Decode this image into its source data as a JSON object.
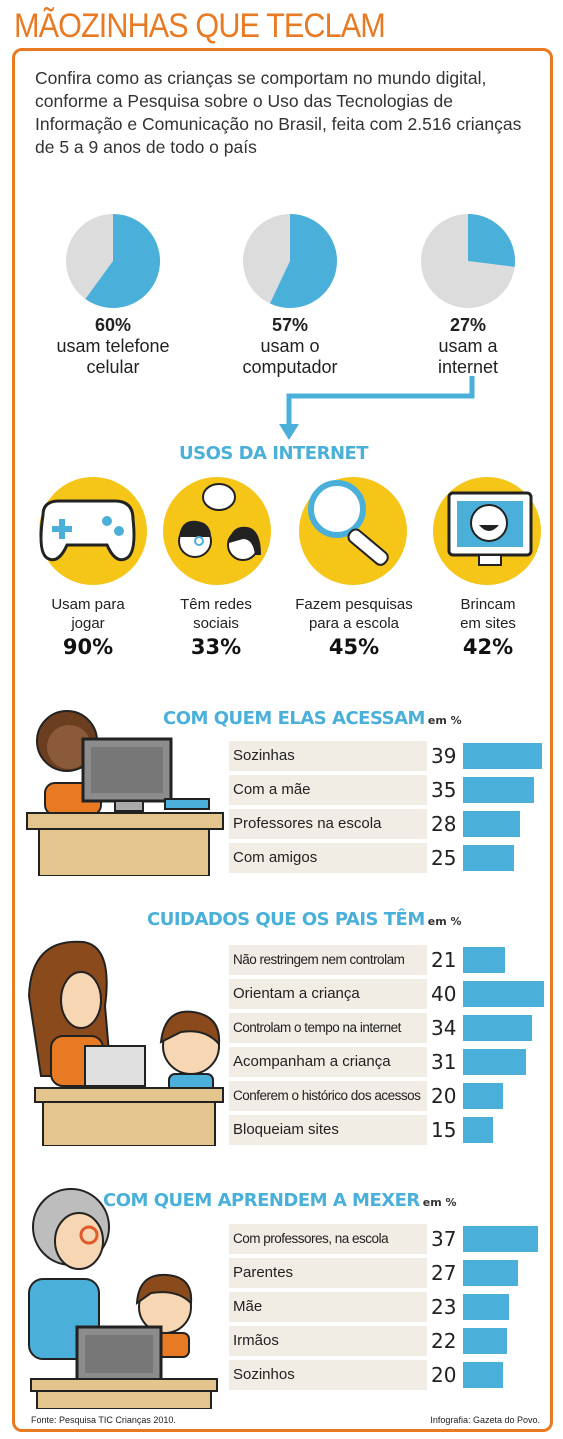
{
  "title": "MÃOZINHAS QUE TECLAM",
  "intro": "Confira como as crianças se comportam no mundo digital, conforme a Pesquisa sobre o Uso das Tecnologias de Informação e Comunicação no Brasil, feita com 2.516 crianças de 5 a 9 anos de todo o país",
  "colors": {
    "accent_orange": "#e87a24",
    "accent_blue": "#4ab0d9",
    "pie_grey": "#dcdcdc",
    "circle_yellow": "#f5c518",
    "label_bg": "#f1ece4"
  },
  "chart_data": [
    {
      "type": "pie",
      "slices": [
        {
          "value": 60,
          "pct_text": "60%",
          "label": "usam telefone celular"
        },
        {
          "value": 57,
          "pct_text": "57%",
          "label": "usam o computador"
        },
        {
          "value": 27,
          "pct_text": "27%",
          "label": "usam a internet"
        }
      ]
    },
    {
      "type": "bar",
      "title": "USOS DA INTERNET",
      "items": [
        {
          "label": "Usam para jogar",
          "value": 90,
          "pct_text": "90%",
          "icon": "game-controller-icon"
        },
        {
          "label": "Têm redes sociais",
          "value": 33,
          "pct_text": "33%",
          "icon": "chat-people-icon"
        },
        {
          "label": "Fazem pesquisas para a escola",
          "value": 45,
          "pct_text": "45%",
          "icon": "magnifier-icon"
        },
        {
          "label": "Brincam em sites",
          "value": 42,
          "pct_text": "42%",
          "icon": "smiley-monitor-icon"
        }
      ]
    },
    {
      "type": "bar",
      "title": "COM QUEM ELAS ACESSAM",
      "unit": "em %",
      "categories": [
        "Sozinhas",
        "Com a mãe",
        "Professores na escola",
        "Com amigos"
      ],
      "values": [
        39,
        35,
        28,
        25
      ]
    },
    {
      "type": "bar",
      "title": "CUIDADOS QUE OS PAIS TÊM",
      "unit": "em %",
      "categories": [
        "Não restringem nem controlam",
        "Orientam a criança",
        "Controlam o tempo na internet",
        "Acompanham a criança",
        "Conferem o histórico dos acessos",
        "Bloqueiam sites"
      ],
      "values": [
        21,
        40,
        34,
        31,
        20,
        15
      ]
    },
    {
      "type": "bar",
      "title": "COM QUEM APRENDEM A MEXER",
      "unit": "em %",
      "categories": [
        "Com professores, na escola",
        "Parentes",
        "Mãe",
        "Irmãos",
        "Sozinhos"
      ],
      "values": [
        37,
        27,
        23,
        22,
        20
      ]
    }
  ],
  "footer": {
    "source": "Fonte: Pesquisa TIC Crianças 2010.",
    "credit": "Infografia: Gazeta do Povo."
  }
}
